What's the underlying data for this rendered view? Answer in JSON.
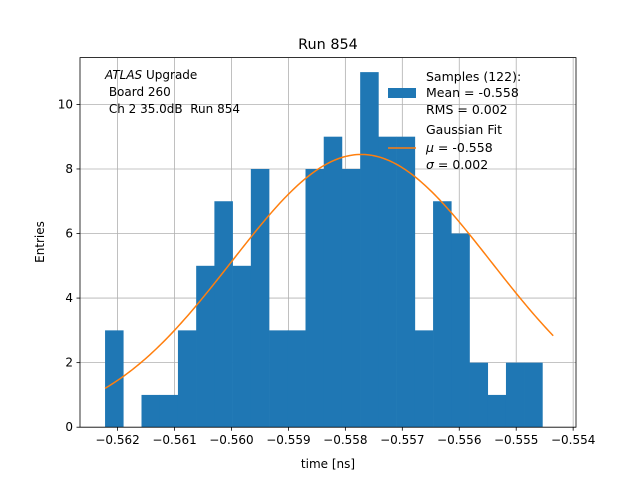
{
  "chart_data": {
    "type": "bar",
    "title": "Run 854",
    "xlabel": "time [ns]",
    "ylabel": "Entries",
    "xlim": [
      -0.56266,
      -0.55395
    ],
    "ylim": [
      0,
      11.45
    ],
    "grid": true,
    "xticks": [
      -0.562,
      -0.561,
      -0.56,
      -0.559,
      -0.558,
      -0.557,
      -0.556,
      -0.555,
      -0.554
    ],
    "xtick_labels": [
      "−0.562",
      "−0.561",
      "−0.560",
      "−0.559",
      "−0.558",
      "−0.557",
      "−0.556",
      "−0.555",
      "−0.554"
    ],
    "yticks": [
      0,
      2,
      4,
      6,
      8,
      10
    ],
    "ytick_labels": [
      "0",
      "2",
      "4",
      "6",
      "8",
      "10"
    ],
    "bin_edges": [
      -0.56222,
      -0.5619,
      -0.56158,
      -0.56126,
      -0.56094,
      -0.56062,
      -0.5603,
      -0.55998,
      -0.55966,
      -0.55934,
      -0.55902,
      -0.5587,
      -0.55838,
      -0.55806,
      -0.55774,
      -0.55742,
      -0.5571,
      -0.55678,
      -0.55646,
      -0.55614,
      -0.55582,
      -0.5555,
      -0.55518,
      -0.55486,
      -0.55454,
      -0.55422,
      -0.5539
    ],
    "counts": [
      3,
      0,
      1,
      1,
      3,
      5,
      7,
      5,
      8,
      3,
      3,
      8,
      9,
      8,
      11,
      9,
      9,
      3,
      7,
      6,
      2,
      1,
      2,
      2,
      0,
      0
    ],
    "bar_color": "#1f77b4",
    "fit": {
      "name": "Gaussian Fit",
      "color": "#ff7f0e",
      "amplitude": 8.45,
      "mu": -0.55772,
      "sigma": 0.00228,
      "x_start": -0.56222,
      "x_end": -0.55435
    },
    "annotation": {
      "line1_italic": "ATLAS",
      "line1_rest": " Upgrade",
      "line2": " Board 260",
      "line3": " Ch 2 35.0dB  Run 854"
    },
    "legend": {
      "samples_title": "Samples (122):",
      "samples_mean": "Mean = -0.558",
      "samples_rms": "RMS = 0.002",
      "fit_title": "Gaussian Fit",
      "fit_mu_symbol": "μ",
      "fit_mu_value": " = -0.558",
      "fit_sigma_symbol": "σ",
      "fit_sigma_value": " = 0.002",
      "placement": "top-right"
    }
  }
}
